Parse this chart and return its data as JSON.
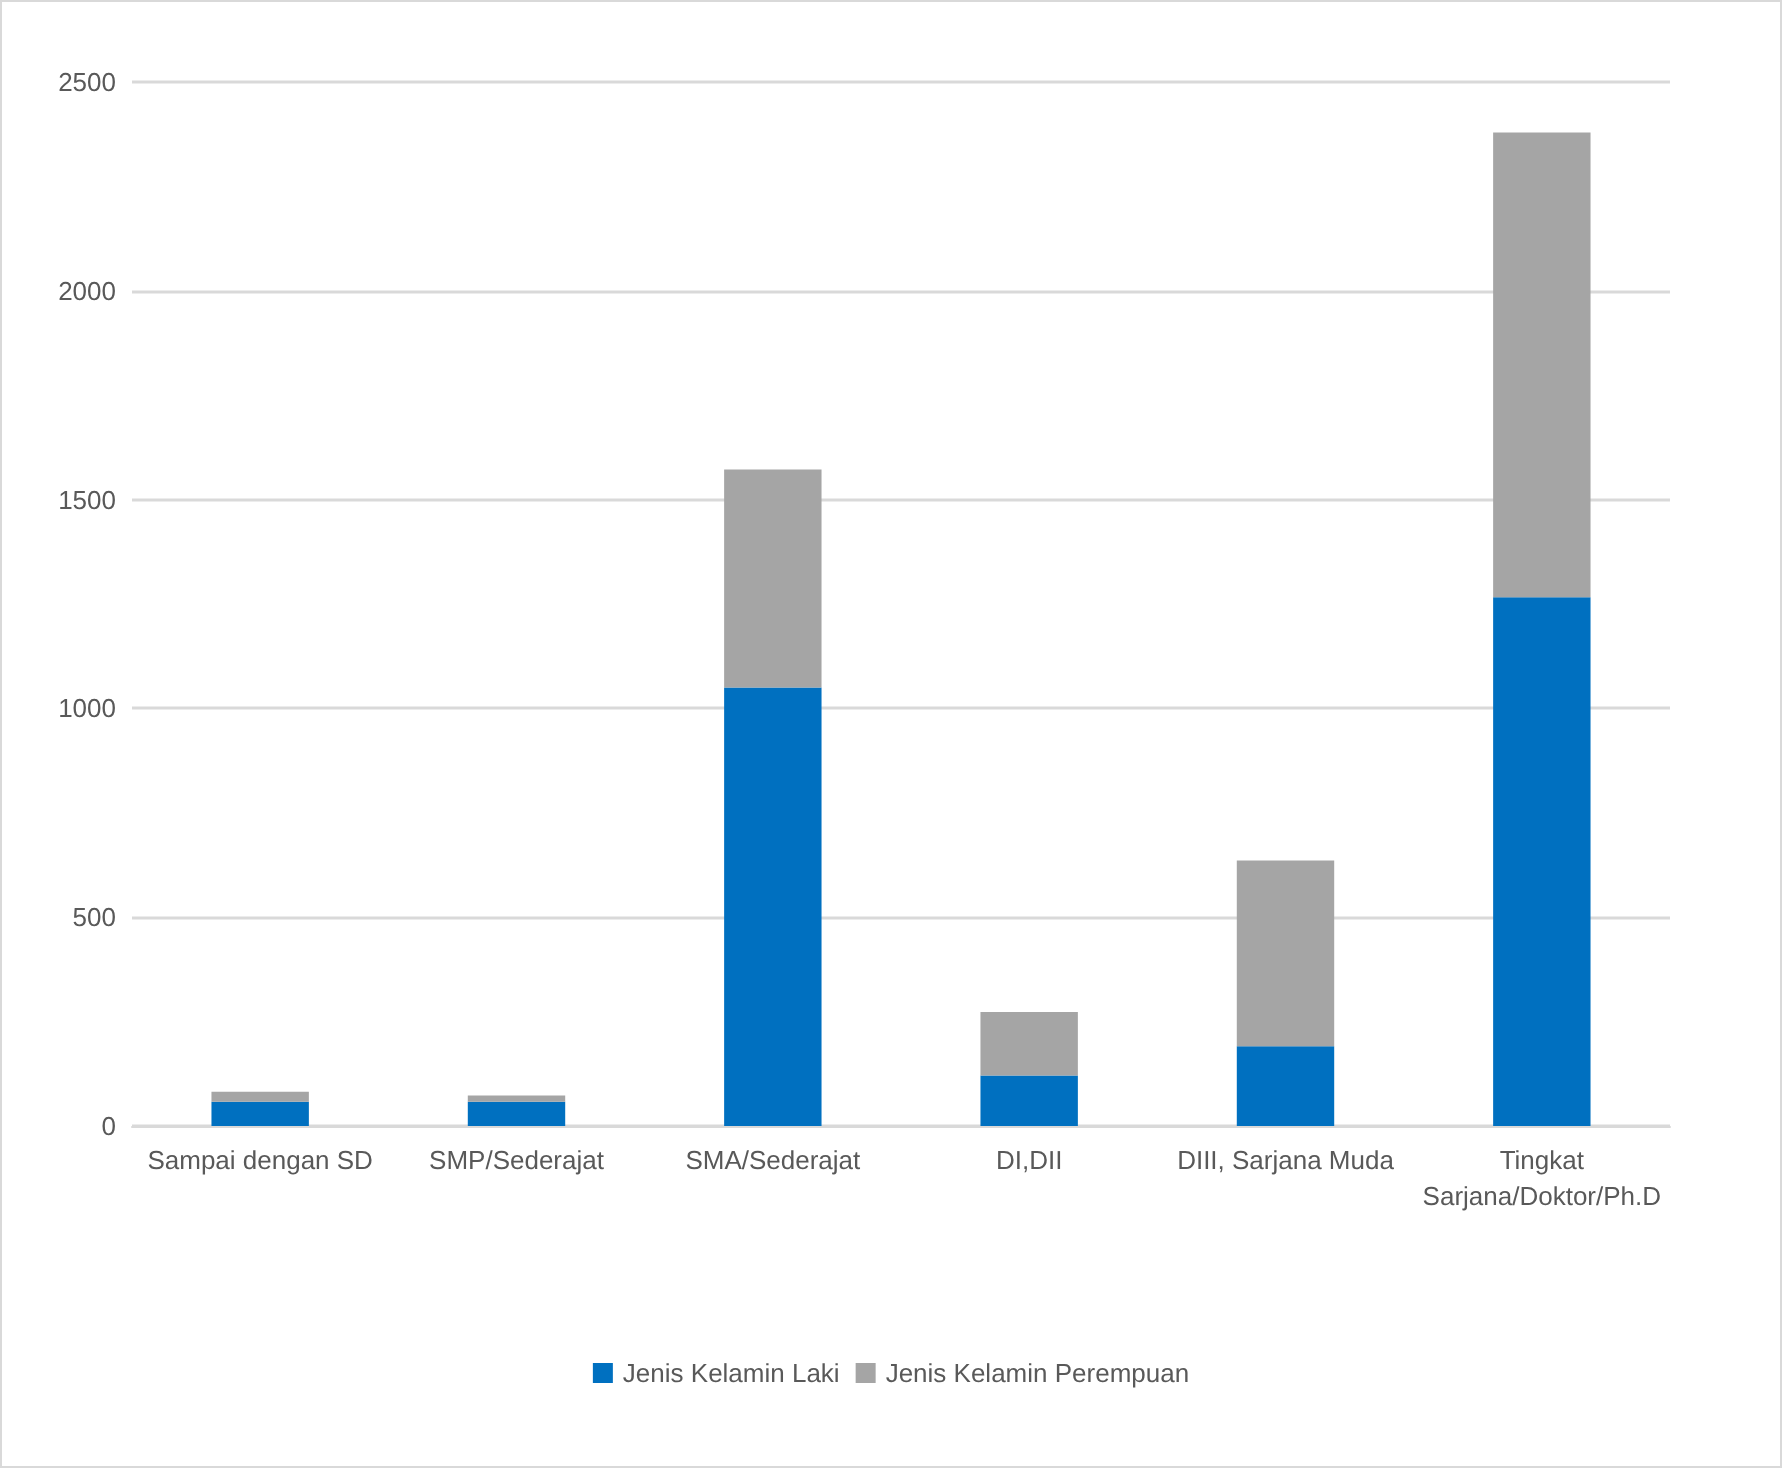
{
  "chart_data": {
    "type": "bar",
    "stacked": true,
    "categories": [
      "Sampai dengan SD",
      "SMP/Sederajat",
      "SMA/Sederajat",
      "DI,DII",
      "DIII, Sarjana Muda",
      "Tingkat Sarjana/Doktor/Ph.D"
    ],
    "series": [
      {
        "name": "Jenis Kelamin Laki",
        "color": "#0070c0",
        "values": [
          58,
          58,
          1050,
          121,
          191,
          1266
        ]
      },
      {
        "name": "Jenis Kelamin Perempuan",
        "color": "#a5a5a5",
        "values": [
          24,
          15,
          522,
          152,
          445,
          1113
        ]
      }
    ],
    "ylim": [
      0,
      2500
    ],
    "yticks": [
      0,
      500,
      1000,
      1500,
      2000,
      2500
    ],
    "grid": "y",
    "legend": "bottom"
  }
}
